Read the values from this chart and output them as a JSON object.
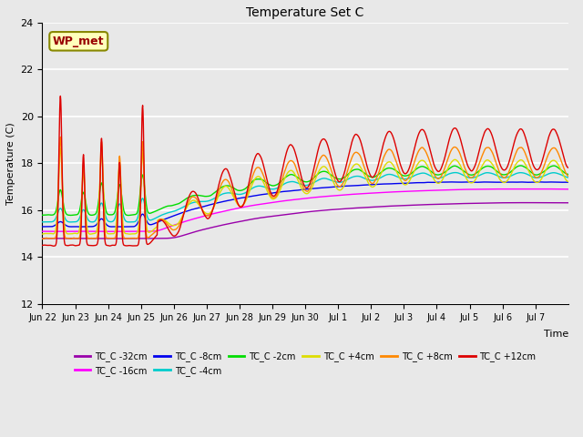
{
  "title": "Temperature Set C",
  "xlabel": "Time",
  "ylabel": "Temperature (C)",
  "ylim": [
    12,
    24
  ],
  "background_color": "#e8e8e8",
  "plot_bg_color": "#e8e8e8",
  "series": [
    {
      "label": "TC_C -32cm",
      "color": "#9900AA"
    },
    {
      "label": "TC_C -16cm",
      "color": "#FF00FF"
    },
    {
      "label": "TC_C -8cm",
      "color": "#0000EE"
    },
    {
      "label": "TC_C -4cm",
      "color": "#00CCCC"
    },
    {
      "label": "TC_C -2cm",
      "color": "#00DD00"
    },
    {
      "label": "TC_C +4cm",
      "color": "#DDDD00"
    },
    {
      "label": "TC_C +8cm",
      "color": "#FF8800"
    },
    {
      "label": "TC_C +12cm",
      "color": "#DD0000"
    }
  ],
  "annotation_text": "WP_met",
  "annotation_color": "#990000",
  "annotation_bg": "#FFFFBB",
  "annotation_border": "#888800",
  "xtick_labels": [
    "Jun 22",
    "Jun 23",
    "Jun 24",
    "Jun 25",
    "Jun 26",
    "Jun 27",
    "Jun 28",
    "Jun 29",
    "Jun 30",
    "Jul 1",
    "Jul 2",
    "Jul 3",
    "Jul 4",
    "Jul 5",
    "Jul 6",
    "Jul 7"
  ],
  "ytick_labels": [
    "12",
    "14",
    "16",
    "18",
    "20",
    "22",
    "24"
  ],
  "ytick_values": [
    12,
    14,
    16,
    18,
    20,
    22,
    24
  ]
}
